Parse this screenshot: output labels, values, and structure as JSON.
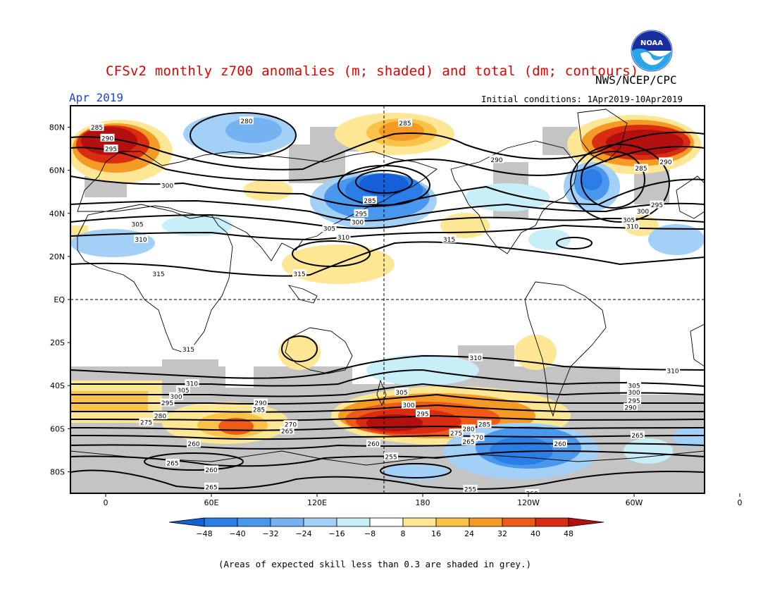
{
  "header": {
    "title": "CFSv2 monthly z700 anomalies (m; shaded) and total (dm; contours)",
    "agency": "NWS/NCEP/CPC",
    "month": "Apr 2019",
    "initial_conditions": "Initial conditions: 1Apr2019-10Apr2019"
  },
  "logo": {
    "text": "NOAA",
    "icon": "noaa-logo-icon"
  },
  "map": {
    "lat_labels": [
      "80N",
      "60N",
      "40N",
      "20N",
      "EQ",
      "20S",
      "40S",
      "60S",
      "80S"
    ],
    "lon_labels": [
      "0",
      "60E",
      "120E",
      "180",
      "120W",
      "60W",
      "0"
    ],
    "contour_labels": [
      {
        "text": "280",
        "lon": 80,
        "lat": 83
      },
      {
        "text": "285",
        "lon": 170,
        "lat": 82
      },
      {
        "text": "285",
        "lon": -5,
        "lat": 80
      },
      {
        "text": "290",
        "lon": 1,
        "lat": 75
      },
      {
        "text": "295",
        "lon": 3,
        "lat": 70
      },
      {
        "text": "300",
        "lon": 35,
        "lat": 53
      },
      {
        "text": "305",
        "lon": 18,
        "lat": 35
      },
      {
        "text": "310",
        "lon": 20,
        "lat": 28
      },
      {
        "text": "315",
        "lon": 30,
        "lat": 12
      },
      {
        "text": "315",
        "lon": 110,
        "lat": 12
      },
      {
        "text": "285",
        "lon": 150,
        "lat": 46
      },
      {
        "text": "295",
        "lon": 145,
        "lat": 40
      },
      {
        "text": "300",
        "lon": 143,
        "lat": 36
      },
      {
        "text": "305",
        "lon": 127,
        "lat": 33
      },
      {
        "text": "310",
        "lon": 135,
        "lat": 29
      },
      {
        "text": "315",
        "lon": 195,
        "lat": 28
      },
      {
        "text": "290",
        "lon": 222,
        "lat": 65
      },
      {
        "text": "285",
        "lon": 304,
        "lat": 61
      },
      {
        "text": "290",
        "lon": 318,
        "lat": 64
      },
      {
        "text": "295",
        "lon": 313,
        "lat": 44
      },
      {
        "text": "300",
        "lon": 305,
        "lat": 41
      },
      {
        "text": "305",
        "lon": 297,
        "lat": 37
      },
      {
        "text": "310",
        "lon": 299,
        "lat": 34
      },
      {
        "text": "315",
        "lon": 347,
        "lat": 18
      },
      {
        "text": "315",
        "lon": 47,
        "lat": -23
      },
      {
        "text": "310",
        "lon": 210,
        "lat": -27
      },
      {
        "text": "310",
        "lon": 322,
        "lat": -33
      },
      {
        "text": "310",
        "lon": 49,
        "lat": -39
      },
      {
        "text": "305",
        "lon": 44,
        "lat": -42
      },
      {
        "text": "300",
        "lon": 40,
        "lat": -45
      },
      {
        "text": "295",
        "lon": 35,
        "lat": -48
      },
      {
        "text": "290",
        "lon": 88,
        "lat": -48
      },
      {
        "text": "285",
        "lon": 87,
        "lat": -51
      },
      {
        "text": "280",
        "lon": 31,
        "lat": -54
      },
      {
        "text": "275",
        "lon": 23,
        "lat": -57
      },
      {
        "text": "270",
        "lon": 105,
        "lat": -58
      },
      {
        "text": "265",
        "lon": 103,
        "lat": -61
      },
      {
        "text": "260",
        "lon": 50,
        "lat": -67
      },
      {
        "text": "265",
        "lon": 38,
        "lat": -76
      },
      {
        "text": "260",
        "lon": 60,
        "lat": -79
      },
      {
        "text": "265",
        "lon": 60,
        "lat": -87
      },
      {
        "text": "305",
        "lon": 168,
        "lat": -43
      },
      {
        "text": "300",
        "lon": 172,
        "lat": -49
      },
      {
        "text": "295",
        "lon": 180,
        "lat": -53
      },
      {
        "text": "280",
        "lon": 206,
        "lat": -60
      },
      {
        "text": "285",
        "lon": 215,
        "lat": -58
      },
      {
        "text": "275",
        "lon": 199,
        "lat": -62
      },
      {
        "text": "270",
        "lon": 211,
        "lat": -64
      },
      {
        "text": "265",
        "lon": 206,
        "lat": -66
      },
      {
        "text": "260",
        "lon": 152,
        "lat": -67
      },
      {
        "text": "255",
        "lon": 162,
        "lat": -73
      },
      {
        "text": "255",
        "lon": 207,
        "lat": -88
      },
      {
        "text": "260",
        "lon": 242,
        "lat": -90
      },
      {
        "text": "260",
        "lon": 258,
        "lat": -67
      },
      {
        "text": "265",
        "lon": 302,
        "lat": -63
      },
      {
        "text": "305",
        "lon": 300,
        "lat": -40
      },
      {
        "text": "300",
        "lon": 300,
        "lat": -43
      },
      {
        "text": "295",
        "lon": 300,
        "lat": -47
      },
      {
        "text": "290",
        "lon": 298,
        "lat": -50
      }
    ]
  },
  "colorbar": {
    "ticks": [
      "−48",
      "−40",
      "−32",
      "−24",
      "−16",
      "−8",
      "8",
      "16",
      "24",
      "32",
      "40",
      "48"
    ],
    "colors": [
      "#1560d8",
      "#2a7ee6",
      "#4a98ee",
      "#74b2f2",
      "#a2d0f6",
      "#c8eef8",
      "#ffffff",
      "#fde694",
      "#fbc24a",
      "#f59a25",
      "#ee5a18",
      "#d92c12",
      "#b41010"
    ]
  },
  "footnote": "(Areas of expected skill less than 0.3 are shaded in grey.)"
}
